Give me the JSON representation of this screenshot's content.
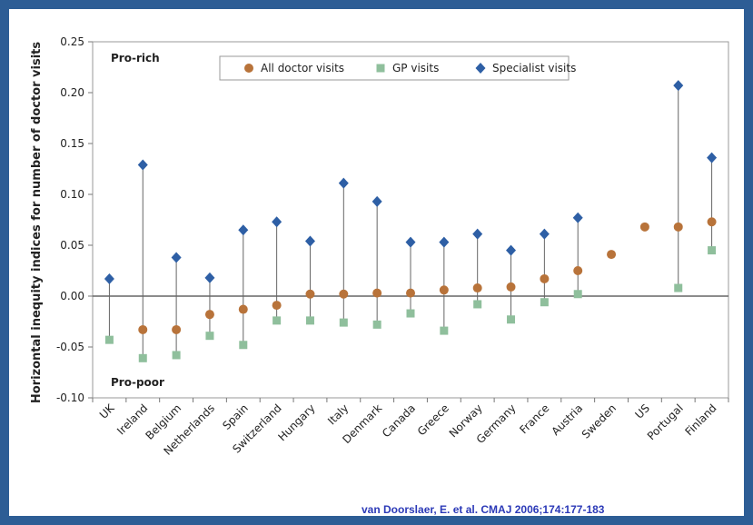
{
  "chart_data": {
    "type": "scatter",
    "ylabel": "Horizontal inequity indices for number of doctor visits",
    "ylim": [
      -0.1,
      0.25
    ],
    "yticks": [
      -0.1,
      -0.05,
      0.0,
      0.05,
      0.1,
      0.15,
      0.2,
      0.25
    ],
    "ytick_labels": [
      "-0.10",
      "-0.05",
      "0.00",
      "0.05",
      "0.10",
      "0.15",
      "0.20",
      "0.25"
    ],
    "grid": false,
    "annotations": {
      "pro_rich": "Pro-rich",
      "pro_poor": "Pro-poor"
    },
    "legend_position": "top",
    "categories": [
      "UK",
      "Ireland",
      "Belgium",
      "Netherlands",
      "Spain",
      "Switzerland",
      "Hungary",
      "Italy",
      "Denmark",
      "Canada",
      "Greece",
      "Norway",
      "Germany",
      "France",
      "Austria",
      "Sweden",
      "US",
      "Portugal",
      "Finland"
    ],
    "series": [
      {
        "name": "All doctor visits",
        "marker": "circle",
        "color": "#b8733a",
        "values": [
          null,
          -0.033,
          -0.033,
          -0.018,
          -0.013,
          -0.009,
          0.002,
          0.002,
          0.003,
          0.003,
          0.006,
          0.008,
          0.009,
          0.017,
          0.025,
          0.041,
          0.068,
          0.068,
          0.073
        ]
      },
      {
        "name": "GP visits",
        "marker": "square",
        "color": "#8fbf9c",
        "values": [
          -0.043,
          -0.061,
          -0.058,
          -0.039,
          -0.048,
          -0.024,
          -0.024,
          -0.026,
          -0.028,
          -0.017,
          -0.034,
          -0.008,
          -0.023,
          -0.006,
          0.002,
          null,
          null,
          0.008,
          0.045
        ]
      },
      {
        "name": "Specialist visits",
        "marker": "diamond",
        "color": "#2e5fa5",
        "values": [
          0.017,
          0.129,
          0.038,
          0.018,
          0.065,
          0.073,
          0.054,
          0.111,
          0.093,
          0.053,
          0.053,
          0.061,
          0.045,
          0.061,
          0.077,
          null,
          null,
          0.207,
          0.136
        ]
      }
    ]
  },
  "citation": "van Doorslaer, E. et al. CMAJ 2006;174:177-183"
}
